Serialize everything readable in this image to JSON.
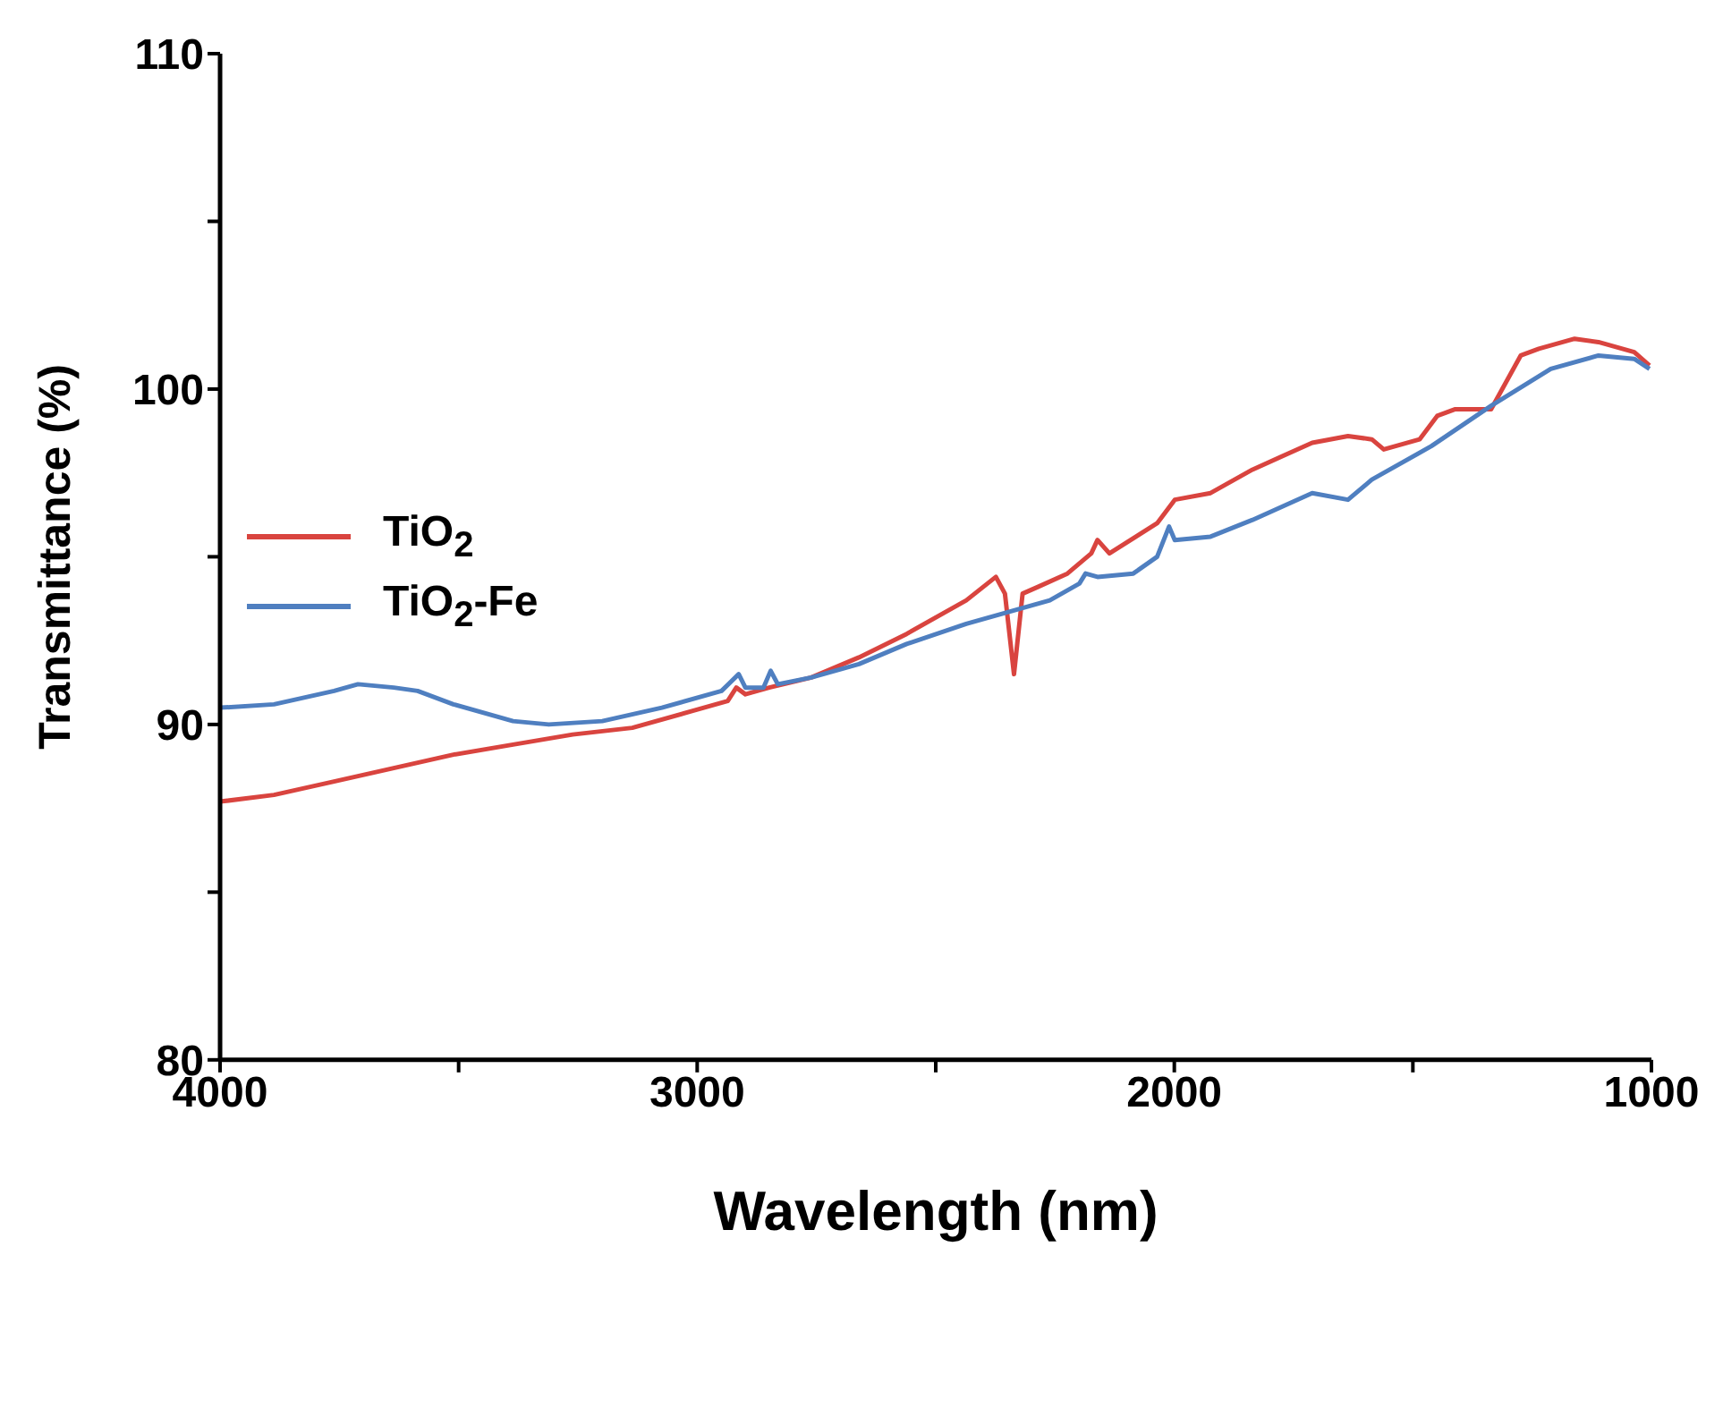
{
  "chart_data": {
    "type": "line",
    "xlabel": "Wavelength (nm)",
    "ylabel": "Transmittance (%)",
    "xlim": [
      4000,
      1000
    ],
    "xticks": [
      4000,
      {
        "value": 3500,
        "label": null
      },
      3000,
      {
        "value": 2500,
        "label": null
      },
      2000,
      {
        "value": 1500,
        "label": null
      },
      1000
    ],
    "ylim": [
      80,
      110
    ],
    "yticks": [
      80,
      {
        "value": 85,
        "label": null
      },
      90,
      {
        "value": 95,
        "label": null
      },
      100,
      {
        "value": 105,
        "label": null
      },
      110
    ],
    "grid": false,
    "legend": "left",
    "marker": "none",
    "line_style": "solid",
    "series": [
      {
        "name": "TiO$_{2}$",
        "color": "#d9443f",
        "x": [
          4000,
          3887,
          3761,
          3636,
          3511,
          3386,
          3261,
          3136,
          3011,
          2936,
          2918,
          2899,
          2849,
          2761,
          2661,
          2561,
          2436,
          2374,
          2355,
          2336,
          2318,
          2286,
          2224,
          2174,
          2161,
          2136,
          2036,
          1999,
          1924,
          1836,
          1711,
          1636,
          1586,
          1561,
          1486,
          1449,
          1411,
          1336,
          1274,
          1236,
          1161,
          1111,
          1036,
          1004
        ],
        "values": [
          87.7,
          87.9,
          88.3,
          88.7,
          89.1,
          89.4,
          89.7,
          89.9,
          90.4,
          90.7,
          91.1,
          90.9,
          91.1,
          91.4,
          92.0,
          92.7,
          93.7,
          94.4,
          93.9,
          91.5,
          93.9,
          94.1,
          94.5,
          95.1,
          95.5,
          95.1,
          96.0,
          96.7,
          96.9,
          97.6,
          98.4,
          98.6,
          98.5,
          98.2,
          98.5,
          99.2,
          99.4,
          99.4,
          101.0,
          101.2,
          101.5,
          101.4,
          101.1,
          100.7
        ]
      },
      {
        "name": "TiO$_{2}$-Fe",
        "color": "#4f7fc0",
        "x": [
          4000,
          3887,
          3761,
          3711,
          3636,
          3586,
          3511,
          3386,
          3311,
          3199,
          3074,
          2949,
          2913,
          2899,
          2861,
          2846,
          2831,
          2761,
          2661,
          2561,
          2436,
          2361,
          2261,
          2199,
          2186,
          2161,
          2086,
          2036,
          2011,
          1999,
          1924,
          1836,
          1711,
          1636,
          1586,
          1461,
          1336,
          1211,
          1111,
          1036,
          1004
        ],
        "values": [
          90.5,
          90.6,
          91.0,
          91.2,
          91.1,
          91.0,
          90.6,
          90.1,
          90.0,
          90.1,
          90.5,
          91.0,
          91.5,
          91.1,
          91.1,
          91.6,
          91.2,
          91.4,
          91.8,
          92.4,
          93.0,
          93.3,
          93.7,
          94.2,
          94.5,
          94.4,
          94.5,
          95.0,
          95.9,
          95.5,
          95.6,
          96.1,
          96.9,
          96.7,
          97.3,
          98.3,
          99.5,
          100.6,
          101.0,
          100.9,
          100.6
        ]
      }
    ]
  }
}
